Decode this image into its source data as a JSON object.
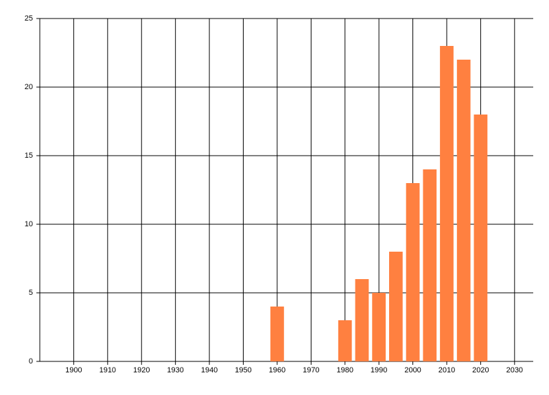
{
  "chart_data": {
    "type": "bar",
    "x": [
      1960,
      1980,
      1985,
      1990,
      1995,
      2000,
      2005,
      2010,
      2015,
      2020
    ],
    "values": [
      4,
      3,
      6,
      5,
      8,
      13,
      14,
      23,
      22,
      18
    ],
    "color": "#ff8040",
    "xlim": [
      1890,
      2035.5
    ],
    "xticks": [
      1900,
      1910,
      1920,
      1930,
      1940,
      1950,
      1960,
      1970,
      1980,
      1990,
      2000,
      2010,
      2020,
      2030
    ],
    "ylim": [
      0,
      25
    ],
    "yticks": [
      0,
      5,
      10,
      15,
      20,
      25
    ],
    "grid": true
  }
}
